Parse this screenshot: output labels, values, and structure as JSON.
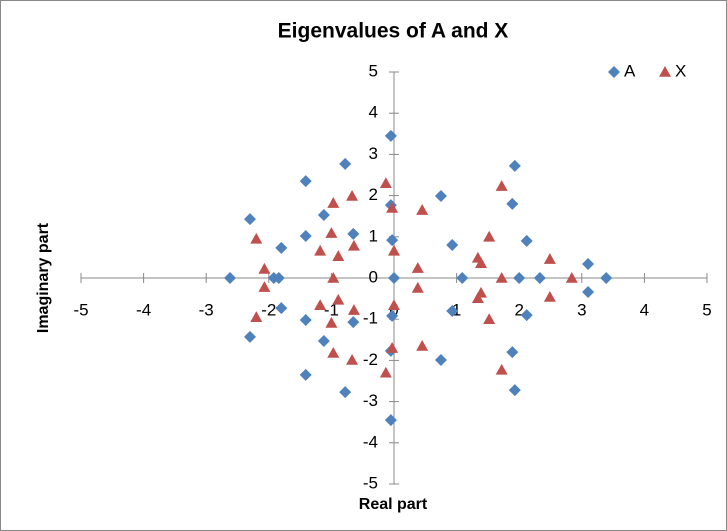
{
  "chart_data": {
    "type": "scatter",
    "title": "Eigenvalues of A and X",
    "xlabel": "Real part",
    "ylabel": "Imaginary part",
    "xlim": [
      -5,
      5
    ],
    "ylim": [
      -5,
      5
    ],
    "xticks": [
      -5,
      -4,
      -3,
      -2,
      -1,
      0,
      1,
      2,
      3,
      4,
      5
    ],
    "yticks": [
      -5,
      -4,
      -3,
      -2,
      -1,
      0,
      1,
      2,
      3,
      4,
      5
    ],
    "grid": false,
    "legend": "top-right",
    "series": [
      {
        "name": "A",
        "color": "#4f81bd",
        "marker": "diamond",
        "x": [
          -0.05,
          -0.05,
          -1.41,
          -1.41,
          -0.78,
          -0.78,
          1.93,
          1.93,
          0.75,
          0.75,
          1.89,
          1.89,
          -0.05,
          -0.05,
          -2.3,
          -2.3,
          -1.12,
          -1.12,
          -1.41,
          -1.41,
          -0.65,
          -0.65,
          -0.03,
          -0.03,
          0.93,
          0.93,
          2.12,
          2.12,
          3.1,
          3.1,
          -1.8,
          -1.8,
          -2.62,
          -1.92,
          -1.84,
          0,
          1.09,
          2.0,
          2.33,
          3.39
        ],
        "y": [
          3.45,
          -3.45,
          2.35,
          -2.35,
          2.77,
          -2.77,
          2.72,
          -2.72,
          1.99,
          -1.99,
          1.8,
          -1.8,
          1.77,
          -1.77,
          1.43,
          -1.43,
          1.53,
          -1.53,
          1.02,
          -1.02,
          1.07,
          -1.07,
          0.92,
          -0.92,
          0.8,
          -0.8,
          0.9,
          -0.9,
          0.34,
          -0.34,
          0.73,
          -0.73,
          0,
          0,
          0,
          0,
          0,
          0,
          0,
          0
        ]
      },
      {
        "name": "X",
        "color": "#c0504d",
        "marker": "triangle",
        "x": [
          -0.13,
          -0.13,
          1.72,
          1.72,
          -0.67,
          -0.67,
          -0.97,
          -0.97,
          0.45,
          0.45,
          -0.03,
          -0.03,
          -1.0,
          -1.0,
          1.52,
          1.52,
          -2.2,
          -2.2,
          -0.64,
          -0.64,
          -1.18,
          -1.18,
          -0.89,
          -0.89,
          1.34,
          1.34,
          1.39,
          1.39,
          2.49,
          2.49,
          0,
          0,
          0.38,
          0.38,
          -2.07,
          -2.07,
          -0.97,
          1.72,
          2.84
        ],
        "y": [
          2.3,
          -2.3,
          2.23,
          -2.23,
          1.99,
          -1.99,
          1.82,
          -1.82,
          1.65,
          -1.65,
          1.7,
          -1.7,
          1.09,
          -1.09,
          1.0,
          -1.0,
          0.95,
          -0.95,
          0.78,
          -0.78,
          0.66,
          -0.66,
          0.53,
          -0.53,
          0.49,
          -0.49,
          0.36,
          -0.36,
          0.46,
          -0.46,
          0.66,
          -0.66,
          0.24,
          -0.24,
          0.22,
          -0.22,
          0,
          0,
          0
        ]
      }
    ]
  }
}
